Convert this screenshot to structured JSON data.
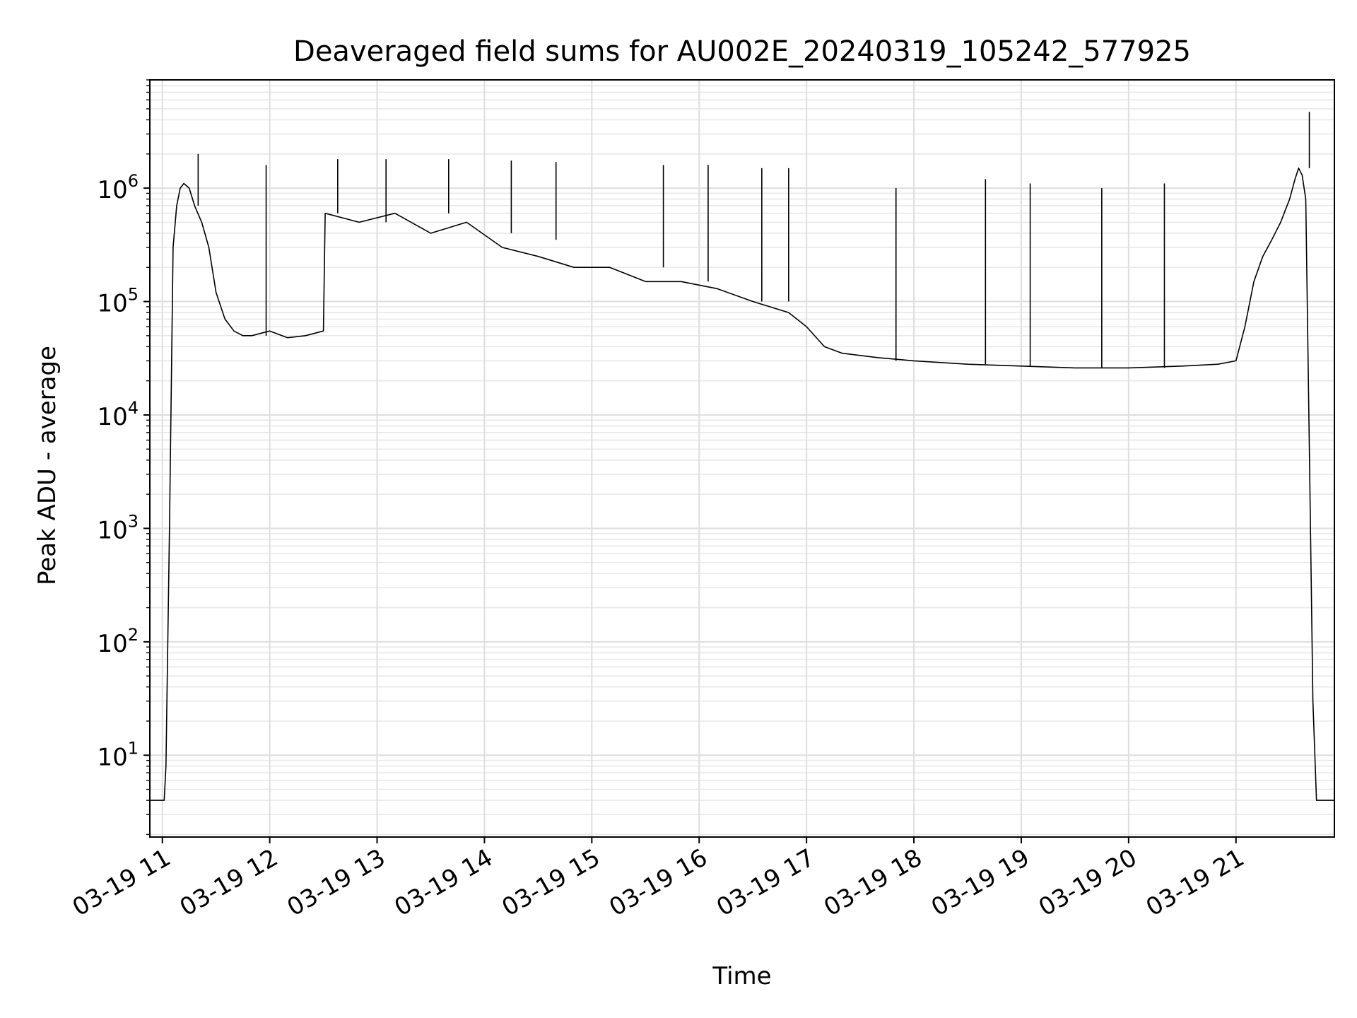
{
  "chart_data": {
    "type": "line",
    "title": "Deaveraged field sums for AU002E_20240319_105242_577925",
    "xlabel": "Time",
    "ylabel": "Peak ADU - average",
    "x_scale": "time",
    "y_scale": "log",
    "xlim": [
      "2024-03-19T10:53",
      "2024-03-19T21:55"
    ],
    "ylim": [
      1.9,
      9000000
    ],
    "x_ticks": [
      {
        "t": "2024-03-19T11:00",
        "label": "03-19 11"
      },
      {
        "t": "2024-03-19T12:00",
        "label": "03-19 12"
      },
      {
        "t": "2024-03-19T13:00",
        "label": "03-19 13"
      },
      {
        "t": "2024-03-19T14:00",
        "label": "03-19 14"
      },
      {
        "t": "2024-03-19T15:00",
        "label": "03-19 15"
      },
      {
        "t": "2024-03-19T16:00",
        "label": "03-19 16"
      },
      {
        "t": "2024-03-19T17:00",
        "label": "03-19 17"
      },
      {
        "t": "2024-03-19T18:00",
        "label": "03-19 18"
      },
      {
        "t": "2024-03-19T19:00",
        "label": "03-19 19"
      },
      {
        "t": "2024-03-19T20:00",
        "label": "03-19 20"
      },
      {
        "t": "2024-03-19T21:00",
        "label": "03-19 21"
      }
    ],
    "y_ticks": [
      {
        "value": 10,
        "base": "10",
        "exp": "1"
      },
      {
        "value": 100,
        "base": "10",
        "exp": "2"
      },
      {
        "value": 1000,
        "base": "10",
        "exp": "3"
      },
      {
        "value": 10000,
        "base": "10",
        "exp": "4"
      },
      {
        "value": 100000,
        "base": "10",
        "exp": "5"
      },
      {
        "value": 1000000,
        "base": "10",
        "exp": "6"
      }
    ],
    "grid": true,
    "minor_grid": true,
    "legend": "none",
    "series": [
      {
        "color": "#000000",
        "x": [
          "2024-03-19T10:53",
          "2024-03-19T11:00",
          "2024-03-19T11:01",
          "2024-03-19T11:02",
          "2024-03-19T11:04",
          "2024-03-19T11:06",
          "2024-03-19T11:08",
          "2024-03-19T11:10",
          "2024-03-19T11:12",
          "2024-03-19T11:15",
          "2024-03-19T11:18",
          "2024-03-19T11:22",
          "2024-03-19T11:26",
          "2024-03-19T11:30",
          "2024-03-19T11:35",
          "2024-03-19T11:40",
          "2024-03-19T11:45",
          "2024-03-19T11:50",
          "2024-03-19T12:00",
          "2024-03-19T12:10",
          "2024-03-19T12:20",
          "2024-03-19T12:30",
          "2024-03-19T12:31",
          "2024-03-19T12:50",
          "2024-03-19T13:10",
          "2024-03-19T13:30",
          "2024-03-19T13:50",
          "2024-03-19T14:10",
          "2024-03-19T14:30",
          "2024-03-19T14:50",
          "2024-03-19T15:10",
          "2024-03-19T15:30",
          "2024-03-19T15:50",
          "2024-03-19T16:10",
          "2024-03-19T16:30",
          "2024-03-19T16:50",
          "2024-03-19T17:00",
          "2024-03-19T17:10",
          "2024-03-19T17:20",
          "2024-03-19T17:40",
          "2024-03-19T18:00",
          "2024-03-19T18:30",
          "2024-03-19T19:00",
          "2024-03-19T19:30",
          "2024-03-19T20:00",
          "2024-03-19T20:30",
          "2024-03-19T20:50",
          "2024-03-19T21:00",
          "2024-03-19T21:05",
          "2024-03-19T21:10",
          "2024-03-19T21:15",
          "2024-03-19T21:20",
          "2024-03-19T21:25",
          "2024-03-19T21:30",
          "2024-03-19T21:33",
          "2024-03-19T21:35",
          "2024-03-19T21:37",
          "2024-03-19T21:39",
          "2024-03-19T21:41",
          "2024-03-19T21:43",
          "2024-03-19T21:45",
          "2024-03-19T21:55"
        ],
        "y": [
          4,
          4,
          4,
          8,
          1000,
          300000,
          700000,
          1000000,
          1100000,
          1000000,
          700000,
          500000,
          300000,
          120000,
          70000,
          55000,
          50000,
          50000,
          55000,
          48000,
          50000,
          55000,
          600000,
          500000,
          600000,
          400000,
          500000,
          300000,
          250000,
          200000,
          200000,
          150000,
          150000,
          130000,
          100000,
          80000,
          60000,
          40000,
          35000,
          32000,
          30000,
          28000,
          27000,
          26000,
          26000,
          27000,
          28000,
          30000,
          60000,
          150000,
          250000,
          350000,
          500000,
          800000,
          1200000,
          1500000,
          1300000,
          800000,
          5000,
          30,
          4,
          4
        ]
      },
      {
        "type": "spikes",
        "color": "#000000",
        "x": [
          "2024-03-19T11:20",
          "2024-03-19T11:58",
          "2024-03-19T12:38",
          "2024-03-19T13:05",
          "2024-03-19T13:40",
          "2024-03-19T14:15",
          "2024-03-19T14:40",
          "2024-03-19T15:40",
          "2024-03-19T16:05",
          "2024-03-19T16:35",
          "2024-03-19T16:50",
          "2024-03-19T17:50",
          "2024-03-19T18:40",
          "2024-03-19T19:05",
          "2024-03-19T19:45",
          "2024-03-19T20:20",
          "2024-03-19T21:41"
        ],
        "low": [
          700000,
          50000,
          600000,
          500000,
          600000,
          400000,
          350000,
          200000,
          150000,
          100000,
          100000,
          30000,
          28000,
          27000,
          26000,
          26000,
          1500000
        ],
        "high": [
          2000000,
          1600000,
          1800000,
          1800000,
          1800000,
          1750000,
          1700000,
          1600000,
          1600000,
          1500000,
          1500000,
          1000000,
          1200000,
          1100000,
          1000000,
          1100000,
          4700000
        ]
      }
    ]
  }
}
